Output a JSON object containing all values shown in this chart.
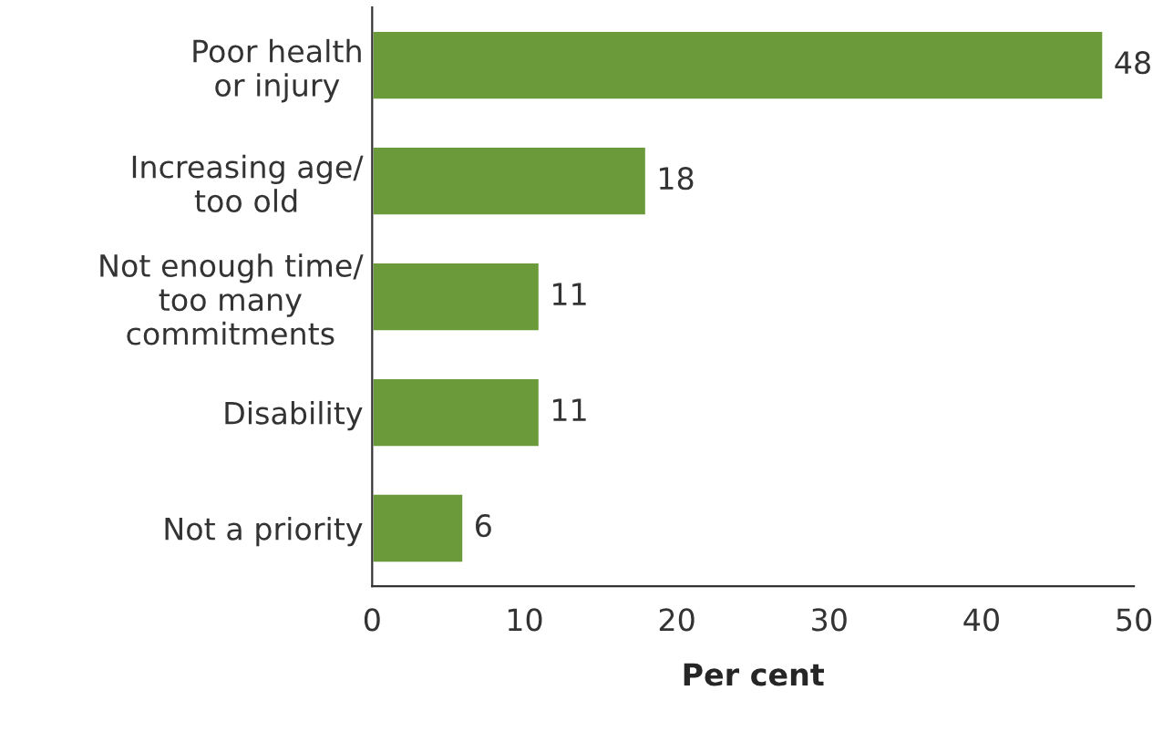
{
  "chart_data": {
    "type": "bar",
    "orientation": "horizontal",
    "xlabel": "Per cent",
    "categories": [
      "Poor health\nor injury",
      "Increasing age/\ntoo old",
      "Not enough time/\ntoo many\ncommitments",
      "Disability",
      "Not a priority"
    ],
    "values": [
      48,
      18,
      11,
      11,
      6
    ],
    "color": "#6a9a3a",
    "xlim": [
      0,
      50
    ],
    "xticks": [
      0,
      10,
      20,
      30,
      40,
      50
    ],
    "data_labels": true,
    "grid": false
  }
}
